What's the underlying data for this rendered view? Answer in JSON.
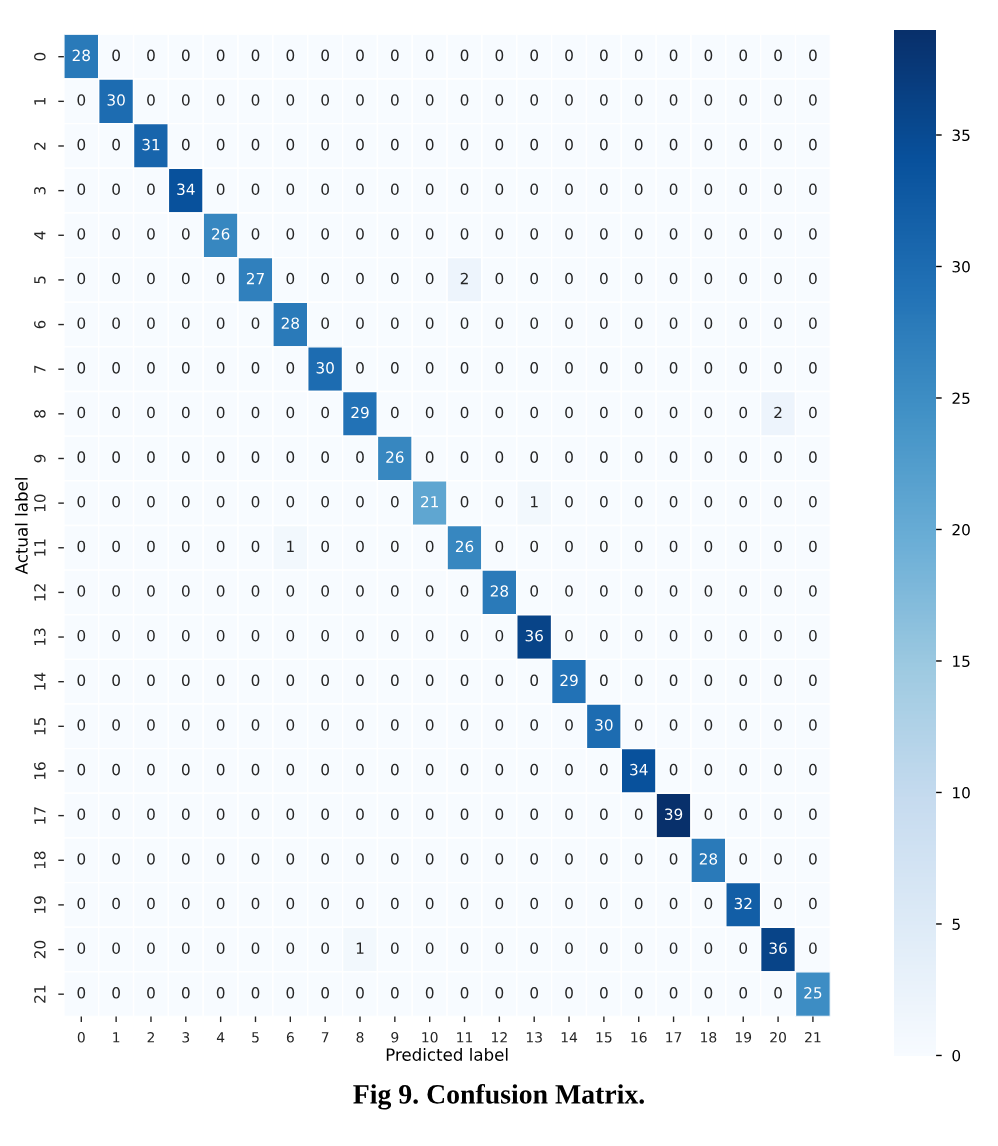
{
  "chart_data": {
    "type": "heatmap",
    "xlabel": "Predicted label",
    "ylabel": "Actual label",
    "annotations": [
      "Fig 9. Confusion Matrix."
    ],
    "categories": [
      "0",
      "1",
      "2",
      "3",
      "4",
      "5",
      "6",
      "7",
      "8",
      "9",
      "10",
      "11",
      "12",
      "13",
      "14",
      "15",
      "16",
      "17",
      "18",
      "19",
      "20",
      "21"
    ],
    "y_categories": [
      "0",
      "1",
      "2",
      "3",
      "4",
      "5",
      "6",
      "7",
      "8",
      "9",
      "10",
      "11",
      "12",
      "13",
      "14",
      "15",
      "16",
      "17",
      "18",
      "19",
      "20",
      "21"
    ],
    "cells": [
      [
        28,
        0,
        0,
        0,
        0,
        0,
        0,
        0,
        0,
        0,
        0,
        0,
        0,
        0,
        0,
        0,
        0,
        0,
        0,
        0,
        0,
        0
      ],
      [
        0,
        30,
        0,
        0,
        0,
        0,
        0,
        0,
        0,
        0,
        0,
        0,
        0,
        0,
        0,
        0,
        0,
        0,
        0,
        0,
        0,
        0
      ],
      [
        0,
        0,
        31,
        0,
        0,
        0,
        0,
        0,
        0,
        0,
        0,
        0,
        0,
        0,
        0,
        0,
        0,
        0,
        0,
        0,
        0,
        0
      ],
      [
        0,
        0,
        0,
        34,
        0,
        0,
        0,
        0,
        0,
        0,
        0,
        0,
        0,
        0,
        0,
        0,
        0,
        0,
        0,
        0,
        0,
        0
      ],
      [
        0,
        0,
        0,
        0,
        26,
        0,
        0,
        0,
        0,
        0,
        0,
        0,
        0,
        0,
        0,
        0,
        0,
        0,
        0,
        0,
        0,
        0
      ],
      [
        0,
        0,
        0,
        0,
        0,
        27,
        0,
        0,
        0,
        0,
        0,
        2,
        0,
        0,
        0,
        0,
        0,
        0,
        0,
        0,
        0,
        0
      ],
      [
        0,
        0,
        0,
        0,
        0,
        0,
        28,
        0,
        0,
        0,
        0,
        0,
        0,
        0,
        0,
        0,
        0,
        0,
        0,
        0,
        0,
        0
      ],
      [
        0,
        0,
        0,
        0,
        0,
        0,
        0,
        30,
        0,
        0,
        0,
        0,
        0,
        0,
        0,
        0,
        0,
        0,
        0,
        0,
        0,
        0
      ],
      [
        0,
        0,
        0,
        0,
        0,
        0,
        0,
        0,
        29,
        0,
        0,
        0,
        0,
        0,
        0,
        0,
        0,
        0,
        0,
        0,
        2,
        0
      ],
      [
        0,
        0,
        0,
        0,
        0,
        0,
        0,
        0,
        0,
        26,
        0,
        0,
        0,
        0,
        0,
        0,
        0,
        0,
        0,
        0,
        0,
        0
      ],
      [
        0,
        0,
        0,
        0,
        0,
        0,
        0,
        0,
        0,
        0,
        21,
        0,
        0,
        1,
        0,
        0,
        0,
        0,
        0,
        0,
        0,
        0
      ],
      [
        0,
        0,
        0,
        0,
        0,
        0,
        1,
        0,
        0,
        0,
        0,
        26,
        0,
        0,
        0,
        0,
        0,
        0,
        0,
        0,
        0,
        0
      ],
      [
        0,
        0,
        0,
        0,
        0,
        0,
        0,
        0,
        0,
        0,
        0,
        0,
        28,
        0,
        0,
        0,
        0,
        0,
        0,
        0,
        0,
        0
      ],
      [
        0,
        0,
        0,
        0,
        0,
        0,
        0,
        0,
        0,
        0,
        0,
        0,
        0,
        36,
        0,
        0,
        0,
        0,
        0,
        0,
        0,
        0
      ],
      [
        0,
        0,
        0,
        0,
        0,
        0,
        0,
        0,
        0,
        0,
        0,
        0,
        0,
        0,
        29,
        0,
        0,
        0,
        0,
        0,
        0,
        0
      ],
      [
        0,
        0,
        0,
        0,
        0,
        0,
        0,
        0,
        0,
        0,
        0,
        0,
        0,
        0,
        0,
        30,
        0,
        0,
        0,
        0,
        0,
        0
      ],
      [
        0,
        0,
        0,
        0,
        0,
        0,
        0,
        0,
        0,
        0,
        0,
        0,
        0,
        0,
        0,
        0,
        34,
        0,
        0,
        0,
        0,
        0
      ],
      [
        0,
        0,
        0,
        0,
        0,
        0,
        0,
        0,
        0,
        0,
        0,
        0,
        0,
        0,
        0,
        0,
        0,
        39,
        0,
        0,
        0,
        0
      ],
      [
        0,
        0,
        0,
        0,
        0,
        0,
        0,
        0,
        0,
        0,
        0,
        0,
        0,
        0,
        0,
        0,
        0,
        0,
        28,
        0,
        0,
        0
      ],
      [
        0,
        0,
        0,
        0,
        0,
        0,
        0,
        0,
        0,
        0,
        0,
        0,
        0,
        0,
        0,
        0,
        0,
        0,
        0,
        32,
        0,
        0
      ],
      [
        0,
        0,
        0,
        0,
        0,
        0,
        0,
        0,
        1,
        0,
        0,
        0,
        0,
        0,
        0,
        0,
        0,
        0,
        0,
        0,
        36,
        0
      ],
      [
        0,
        0,
        0,
        0,
        0,
        0,
        0,
        0,
        0,
        0,
        0,
        0,
        0,
        0,
        0,
        0,
        0,
        0,
        0,
        0,
        0,
        25
      ]
    ],
    "clim": [
      0,
      39
    ],
    "cticks": [
      0,
      5,
      10,
      15,
      20,
      25,
      30,
      35
    ],
    "data_labels": true
  }
}
